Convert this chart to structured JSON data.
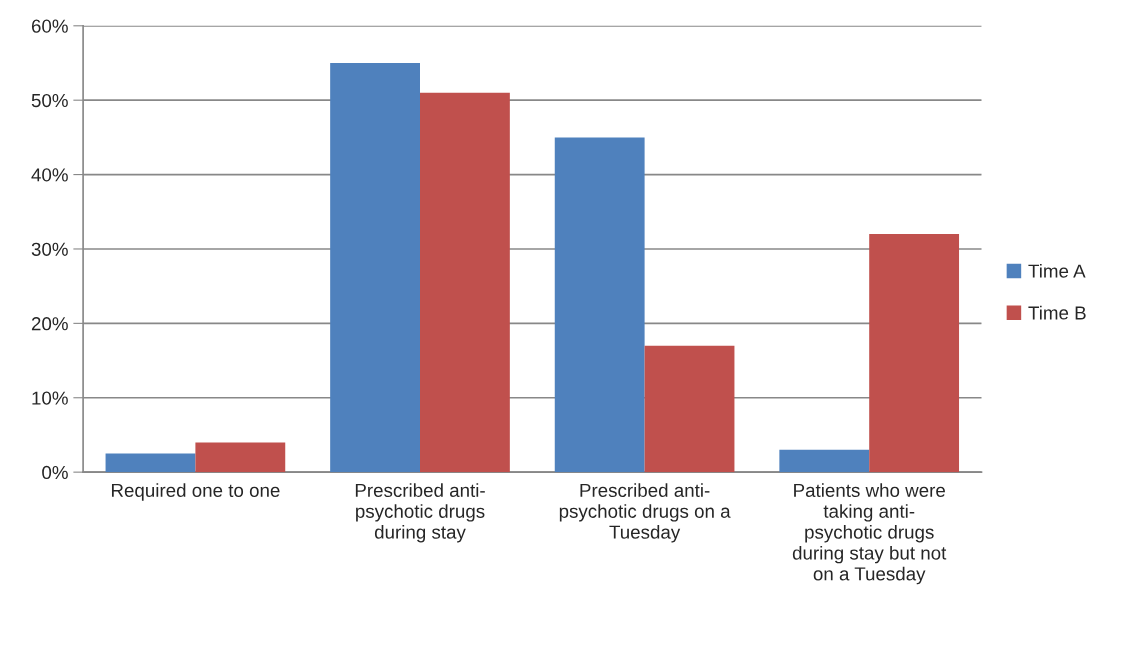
{
  "chart_data": {
    "type": "bar",
    "categories": [
      "Required one to one",
      "Prescribed anti-\npsychotic drugs\nduring stay",
      "Prescribed anti-\npsychotic drugs on a\nTuesday",
      "Patients who were\ntaking anti-\npsychotic drugs\nduring stay but not\non a Tuesday"
    ],
    "series": [
      {
        "name": "Time A",
        "color": "#4f81bd",
        "values": [
          2.5,
          55,
          45,
          3
        ]
      },
      {
        "name": "Time B",
        "color": "#c0504d",
        "values": [
          4,
          51,
          17,
          32
        ]
      }
    ],
    "ylim": [
      0,
      60
    ],
    "yticks": [
      {
        "value": 0,
        "label": "0%"
      },
      {
        "value": 10,
        "label": "10%"
      },
      {
        "value": 20,
        "label": "20%"
      },
      {
        "value": 30,
        "label": "30%"
      },
      {
        "value": 40,
        "label": "40%"
      },
      {
        "value": 50,
        "label": "50%"
      },
      {
        "value": 60,
        "label": "60%"
      }
    ],
    "grid": "y",
    "legend": "right"
  }
}
